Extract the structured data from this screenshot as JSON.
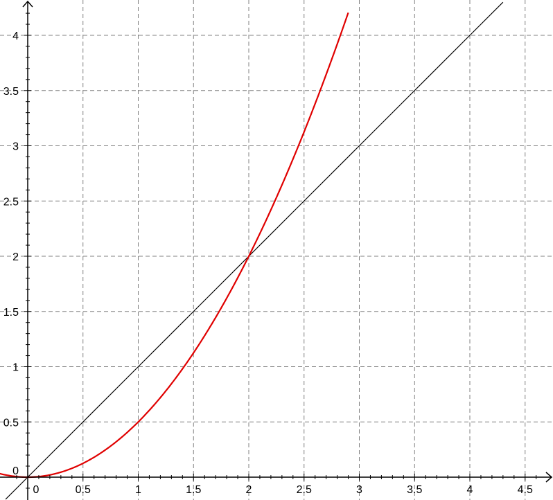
{
  "chart_data": {
    "type": "line",
    "title": "",
    "xlabel": "",
    "ylabel": "",
    "xlim": [
      -0.2,
      4.8
    ],
    "ylim": [
      -0.2,
      4.3
    ],
    "grid": true,
    "x_ticks": [
      0.5,
      1,
      1.5,
      2,
      2.5,
      3,
      3.5,
      4,
      4.5
    ],
    "x_tick_labels": [
      "0.5",
      "1",
      "1.5",
      "2",
      "2.5",
      "3",
      "3.5",
      "4",
      "4.5"
    ],
    "y_ticks": [
      0.5,
      1,
      1.5,
      2,
      2.5,
      3,
      3.5,
      4
    ],
    "y_tick_labels": [
      "0.5",
      "1",
      "1.5",
      "2",
      "2.5",
      "3",
      "3.5",
      "4"
    ],
    "origin_labels": {
      "x": "0",
      "y": "0"
    },
    "series": [
      {
        "color": "#000000",
        "x": [
          -0.2,
          0,
          0.5,
          1,
          1.5,
          2,
          2.5,
          3,
          3.5,
          4,
          4.3
        ],
        "y": [
          -0.2,
          0,
          0.5,
          1,
          1.5,
          2,
          2.5,
          3,
          3.5,
          4,
          4.3
        ]
      },
      {
        "color": "#e00000",
        "x": [
          -0.3,
          -0.2,
          0,
          0.5,
          1,
          1.5,
          2,
          2.25,
          2.5,
          2.75,
          2.9
        ],
        "y": [
          0.045,
          0.02,
          0,
          0.125,
          0.5,
          1.125,
          2,
          2.531,
          3.125,
          3.781,
          4.205
        ]
      }
    ]
  }
}
